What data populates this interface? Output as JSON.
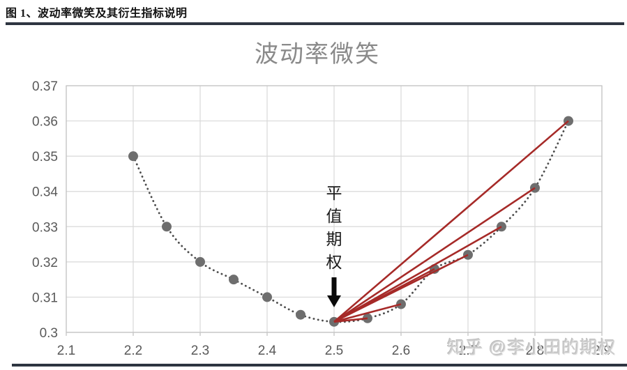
{
  "header": {
    "title": "图 1、波动率微笑及其衍生指标说明"
  },
  "watermark": {
    "text": "知乎 @李小田的期权"
  },
  "chart_data": {
    "type": "scatter",
    "title": "波动率微笑",
    "x": [
      2.2,
      2.25,
      2.3,
      2.35,
      2.4,
      2.45,
      2.5,
      2.55,
      2.6,
      2.65,
      2.7,
      2.75,
      2.8,
      2.85
    ],
    "y": [
      0.35,
      0.33,
      0.32,
      0.315,
      0.31,
      0.305,
      0.303,
      0.304,
      0.308,
      0.318,
      0.322,
      0.33,
      0.341,
      0.36
    ],
    "curve_style": "dotted-smooth",
    "xlim": [
      2.1,
      2.9
    ],
    "ylim": [
      0.3,
      0.37
    ],
    "x_ticks": [
      "2.1",
      "2.2",
      "2.3",
      "2.4",
      "2.5",
      "2.6",
      "2.7",
      "2.8",
      "2.9"
    ],
    "y_ticks": [
      "0.3",
      "0.31",
      "0.32",
      "0.33",
      "0.34",
      "0.35",
      "0.36",
      "0.37"
    ],
    "grid": true,
    "legend": "none",
    "annotation": {
      "label": "平值期权",
      "target_x": 2.5,
      "target_y": 0.303
    },
    "fan_lines": {
      "from_x": 2.5,
      "from_y": 0.303,
      "to_x": [
        2.55,
        2.6,
        2.65,
        2.7,
        2.75,
        2.8,
        2.85
      ]
    },
    "colors": {
      "marker": "#6e6e6e",
      "curve": "#4d4d4d",
      "fan_red": "#a62a28",
      "grid": "#d9d9d9",
      "plot_border": "#c4c4c4",
      "axis_text": "#595959",
      "title_text": "#8a8a8a",
      "rule_dark": "#2e3541",
      "arrow_black": "#0a0a0a"
    }
  }
}
